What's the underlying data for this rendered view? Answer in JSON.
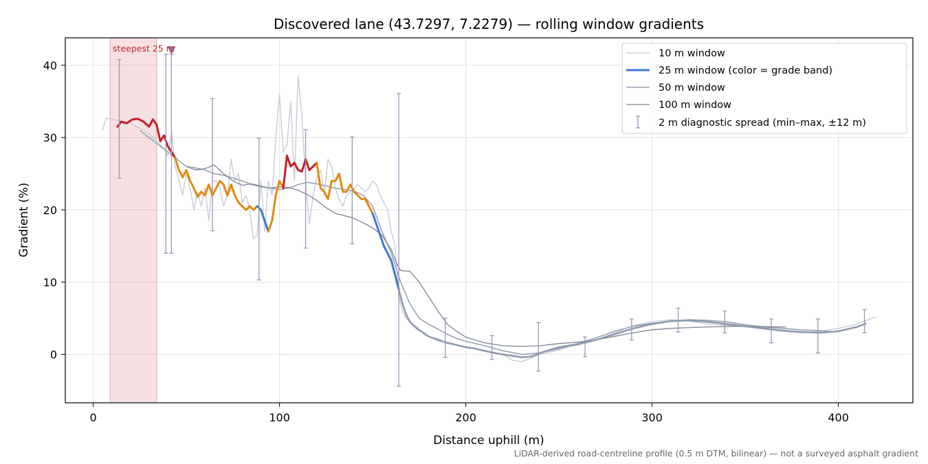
{
  "chart_data": {
    "type": "line",
    "title": "Discovered lane (43.7297, 7.2279) — rolling window gradients",
    "xlabel": "Distance uphill (m)",
    "ylabel": "Gradient (%)",
    "footnote": "LiDAR-derived road-centreline profile (0.5 m DTM, bilinear) — not a surveyed asphalt gradient",
    "xlim": [
      -15,
      440
    ],
    "ylim": [
      -6.7,
      43.8
    ],
    "xticks": [
      0,
      100,
      200,
      300,
      400
    ],
    "yticks": [
      0,
      10,
      20,
      30,
      40
    ],
    "grid": true,
    "legend_position": "top-right",
    "highlight": {
      "label": "steepest 25 m",
      "x_start": 9,
      "x_end": 34,
      "marker_x": 42,
      "color": "#c0262f"
    },
    "colors": {
      "w10": "#c7ccd5",
      "w25_red": "#c0202a",
      "w25_orange": "#e08a10",
      "w25_blue": "#3a78d6",
      "w50": "#98a2b3",
      "w100": "#7b8495",
      "errorbar": "#9a94b8"
    },
    "series": [
      {
        "name": "10 m window",
        "x": [
          5,
          7,
          10,
          13,
          17,
          20,
          23,
          26,
          30,
          33,
          36,
          38,
          40,
          42,
          44,
          46,
          48,
          50,
          52,
          54,
          56,
          58,
          60,
          62,
          64,
          66,
          68,
          70,
          72,
          74,
          76,
          78,
          80,
          82,
          84,
          86,
          88,
          90,
          92,
          94,
          96,
          98,
          100,
          102,
          104,
          106,
          108,
          110,
          112,
          114,
          116,
          118,
          120,
          122,
          124,
          126,
          128,
          130,
          132,
          134,
          136,
          138,
          140,
          142,
          144,
          146,
          148,
          150,
          152,
          154,
          156,
          158,
          160,
          162,
          164,
          166,
          168,
          170,
          172,
          174,
          176,
          178,
          180,
          185,
          190,
          195,
          200,
          205,
          210,
          215,
          220,
          225,
          230,
          235,
          240,
          245,
          250,
          255,
          260,
          265,
          270,
          280,
          290,
          300,
          310,
          320,
          330,
          340,
          350,
          360,
          370,
          380,
          390,
          400,
          410,
          420
        ],
        "y": [
          31,
          32.7,
          32.5,
          32.4,
          31.8,
          32,
          31.5,
          31.2,
          30.5,
          29.8,
          29,
          28.5,
          27.5,
          30.7,
          26,
          24,
          22,
          25,
          23,
          20,
          22.5,
          20.5,
          23,
          18.5,
          24,
          24,
          23,
          20.5,
          22,
          27,
          24,
          25,
          21,
          22,
          20,
          16,
          16.5,
          24,
          17,
          24,
          22,
          30,
          36,
          28,
          29,
          35,
          24,
          38.5,
          33,
          24,
          18,
          22,
          24.5,
          25.5,
          22,
          27,
          26,
          23,
          21.5,
          20.5,
          22,
          22.5,
          23,
          23.5,
          23,
          22.5,
          23,
          24,
          23.5,
          22,
          21,
          20,
          17,
          15,
          8,
          6,
          5,
          4.5,
          4,
          3.8,
          3.2,
          3,
          2.5,
          2.2,
          1.5,
          1.3,
          1,
          0.8,
          0.5,
          0.3,
          0,
          -0.8,
          -1,
          -0.5,
          0,
          0.3,
          0.6,
          1,
          1.3,
          1.6,
          2,
          3,
          4,
          4.5,
          4.8,
          4.6,
          4.2,
          4,
          3.8,
          3.5,
          3.2,
          3,
          3.2,
          3.6,
          4.2,
          5.2
        ]
      },
      {
        "name": "25 m window (color = grade band)",
        "x": [
          13,
          15,
          18,
          21,
          24,
          27,
          30,
          32,
          34,
          36,
          38,
          40,
          42,
          44,
          46,
          48,
          50,
          52,
          54,
          56,
          58,
          60,
          62,
          64,
          66,
          68,
          70,
          72,
          74,
          76,
          78,
          80,
          82,
          84,
          86,
          88,
          90,
          92,
          94,
          96,
          98,
          100,
          102,
          104,
          106,
          108,
          110,
          112,
          114,
          116,
          118,
          120,
          122,
          124,
          126,
          128,
          130,
          132,
          134,
          136,
          138,
          140,
          142,
          144,
          146,
          148,
          150,
          152,
          154,
          156,
          158,
          160,
          162,
          164,
          166,
          168,
          170,
          172,
          174,
          176,
          178,
          180,
          185,
          190,
          195,
          200,
          205,
          210,
          215,
          220,
          225,
          230,
          235,
          240,
          245,
          250,
          255,
          260,
          265,
          270,
          275,
          280,
          290,
          300,
          310,
          320,
          330,
          340,
          350,
          360,
          370,
          380,
          390,
          400,
          410,
          415
        ],
        "y": [
          31.5,
          32.2,
          32,
          32.5,
          32.6,
          32.2,
          31.5,
          32.5,
          31.8,
          29.5,
          30.3,
          28.8,
          28,
          27.2,
          25.5,
          24.5,
          25.5,
          24,
          23,
          21.8,
          22.5,
          22,
          23.5,
          22,
          23,
          24,
          23.5,
          22,
          23.5,
          22,
          21,
          20.5,
          20,
          20.5,
          20,
          20.5,
          20,
          18.5,
          17,
          18.5,
          22,
          24,
          23,
          27.5,
          26,
          26.5,
          25.5,
          25.3,
          27,
          25.5,
          26,
          26.5,
          23,
          22.5,
          21.5,
          24,
          24,
          25,
          22.5,
          22.5,
          23.5,
          22.5,
          22,
          21.5,
          21.5,
          20.5,
          19.5,
          18,
          16.5,
          15,
          14,
          13,
          11,
          9,
          7,
          5.5,
          4.5,
          4,
          3.5,
          3.2,
          2.8,
          2.5,
          2,
          1.6,
          1.3,
          1,
          0.8,
          0.5,
          0.2,
          0,
          -0.2,
          -0.4,
          -0.3,
          0.2,
          0.6,
          1,
          1.2,
          1.4,
          1.7,
          2,
          2.4,
          2.8,
          3.6,
          4.2,
          4.6,
          4.7,
          4.5,
          4.2,
          3.9,
          3.6,
          3.3,
          3.1,
          3,
          3.2,
          3.8,
          4.3
        ]
      },
      {
        "name": "50 m window",
        "x": [
          25,
          30,
          35,
          40,
          45,
          50,
          55,
          60,
          65,
          70,
          75,
          80,
          85,
          90,
          95,
          100,
          105,
          110,
          115,
          120,
          125,
          130,
          135,
          140,
          145,
          150,
          155,
          160,
          165,
          170,
          175,
          180,
          185,
          190,
          195,
          200,
          210,
          220,
          230,
          240,
          250,
          260,
          270,
          280,
          290,
          300,
          310,
          320,
          330,
          340,
          350,
          360,
          370,
          380,
          390,
          395
        ],
        "y": [
          31,
          30,
          29,
          28,
          27,
          26,
          25.8,
          25.5,
          25,
          24.8,
          24.4,
          24,
          23.5,
          23.2,
          23,
          22.8,
          23,
          23.5,
          23.8,
          23.6,
          23.3,
          23,
          22.8,
          22.6,
          22,
          20.5,
          17,
          14,
          10,
          7,
          5,
          4.2,
          3.5,
          2.8,
          2.2,
          1.8,
          1.2,
          0.5,
          0,
          0.2,
          0.8,
          1.5,
          2.3,
          3.2,
          3.9,
          4.3,
          4.6,
          4.8,
          4.7,
          4.5,
          4.1,
          3.8,
          3.6,
          3.4,
          3.3,
          3.2
        ]
      },
      {
        "name": "100 m window",
        "x": [
          50,
          55,
          60,
          65,
          70,
          75,
          80,
          85,
          90,
          95,
          100,
          105,
          110,
          115,
          120,
          125,
          130,
          135,
          140,
          145,
          150,
          155,
          160,
          163,
          165,
          170,
          175,
          180,
          185,
          190,
          195,
          200,
          210,
          220,
          230,
          240,
          250,
          260,
          270,
          280,
          290,
          300,
          310,
          320,
          330,
          340,
          350,
          360,
          370,
          372
        ],
        "y": [
          26,
          25.5,
          25.7,
          26.2,
          25,
          24,
          23.4,
          23.6,
          23.3,
          23,
          23.2,
          23.1,
          22.7,
          22.1,
          21.3,
          20.3,
          19.5,
          19.2,
          18.8,
          18.2,
          17.5,
          16.5,
          14.5,
          12.5,
          11.6,
          11.5,
          10,
          8,
          6,
          4.2,
          3.2,
          2.4,
          1.6,
          1.2,
          1.1,
          1.2,
          1.5,
          1.7,
          2,
          2.5,
          3,
          3.4,
          3.6,
          3.7,
          3.8,
          3.85,
          3.9,
          3.85,
          3.8,
          3.8
        ]
      }
    ],
    "grade_bands": [
      {
        "x_from": 13,
        "x_to": 44,
        "color": "red"
      },
      {
        "x_from": 44,
        "x_to": 88,
        "color": "orange"
      },
      {
        "x_from": 88,
        "x_to": 94,
        "color": "blue"
      },
      {
        "x_from": 94,
        "x_to": 102,
        "color": "orange"
      },
      {
        "x_from": 102,
        "x_to": 120,
        "color": "red"
      },
      {
        "x_from": 120,
        "x_to": 150,
        "color": "orange"
      },
      {
        "x_from": 150,
        "x_to": 165,
        "color": "blue"
      }
    ],
    "error_bars": {
      "name": "2 m diagnostic spread (min–max, ±12 m)",
      "points": [
        {
          "x": 14,
          "min": 24.4,
          "max": 40.8
        },
        {
          "x": 39,
          "min": 14,
          "max": 41.5
        },
        {
          "x": 42,
          "min": 14,
          "max": 41.5
        },
        {
          "x": 64,
          "min": 17.1,
          "max": 35.4
        },
        {
          "x": 89,
          "min": 10.3,
          "max": 29.9
        },
        {
          "x": 114,
          "min": 14.7,
          "max": 31.1
        },
        {
          "x": 139,
          "min": 15.3,
          "max": 30.1
        },
        {
          "x": 164,
          "min": -4.4,
          "max": 36.1
        },
        {
          "x": 189,
          "min": -0.4,
          "max": 5
        },
        {
          "x": 214,
          "min": -0.7,
          "max": 2.6
        },
        {
          "x": 239,
          "min": -2.3,
          "max": 4.4
        },
        {
          "x": 264,
          "min": -0.3,
          "max": 2.4
        },
        {
          "x": 289,
          "min": 2,
          "max": 4.9
        },
        {
          "x": 314,
          "min": 3.1,
          "max": 6.4
        },
        {
          "x": 339,
          "min": 3,
          "max": 6
        },
        {
          "x": 364,
          "min": 1.6,
          "max": 4.9
        },
        {
          "x": 389,
          "min": 0.2,
          "max": 4.9
        },
        {
          "x": 414,
          "min": 3,
          "max": 6.2
        }
      ]
    }
  }
}
